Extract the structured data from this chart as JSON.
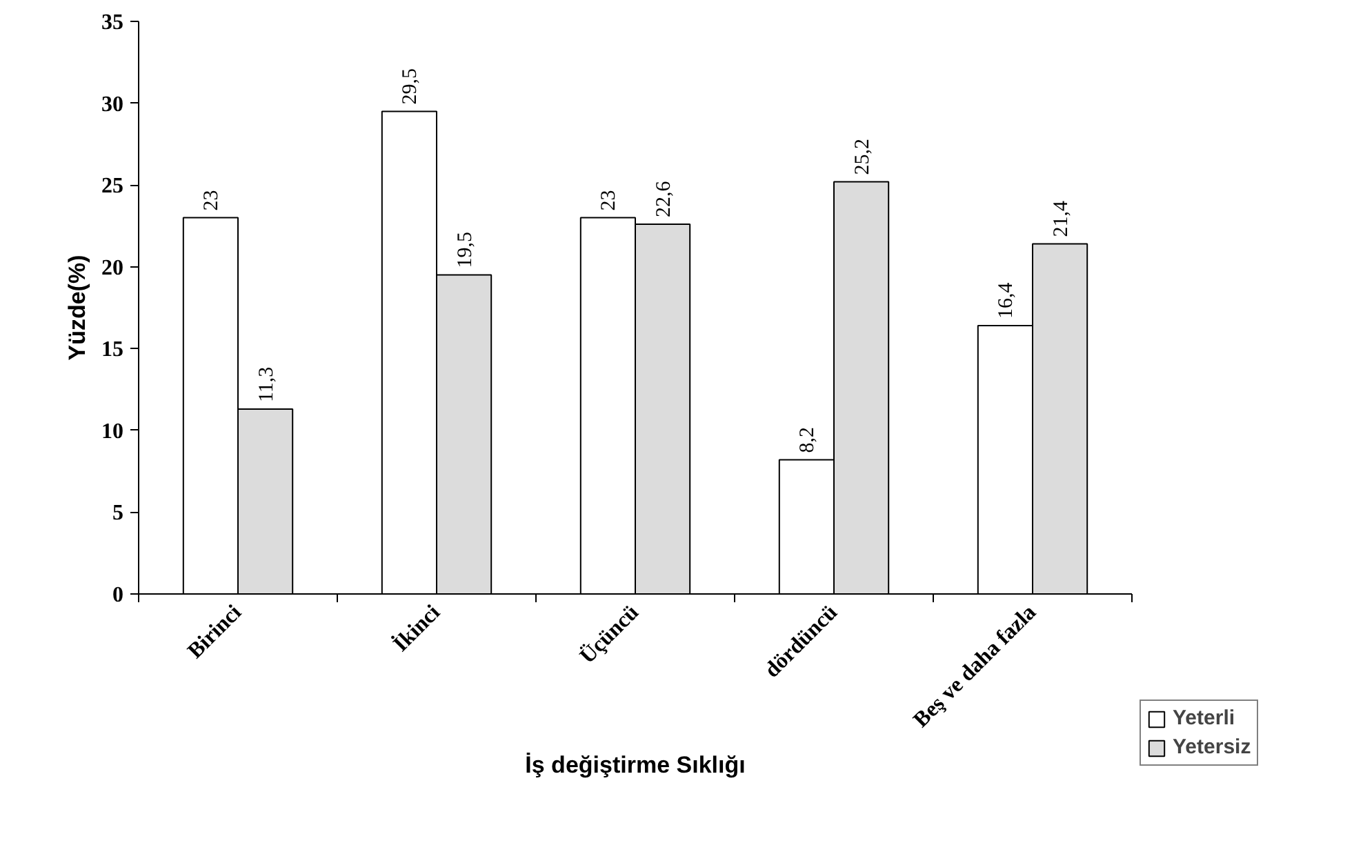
{
  "chart_data": {
    "type": "bar",
    "xlabel": "İş değiştirme Sıklığı",
    "ylabel": "Yüzde(%)",
    "categories": [
      "Birinci",
      "İkinci",
      "Üçüncü",
      "dördüncü",
      "Beş ve daha fazla"
    ],
    "series": [
      {
        "name": "Yeterli",
        "color": "#ffffff",
        "values": [
          23,
          29.5,
          23,
          8.2,
          16.4
        ],
        "value_labels": [
          "23",
          "29,5",
          "23",
          "8,2",
          "16,4"
        ]
      },
      {
        "name": "Yetersiz",
        "color": "#dcdcdc",
        "values": [
          11.3,
          19.5,
          22.6,
          25.2,
          21.4
        ],
        "value_labels": [
          "11,3",
          "19,5",
          "22,6",
          "25,2",
          "21,4"
        ]
      }
    ],
    "ylim": [
      0,
      35
    ],
    "yticks": [
      0,
      5,
      10,
      15,
      20,
      25,
      30,
      35
    ],
    "legend": "right",
    "grid": false
  }
}
